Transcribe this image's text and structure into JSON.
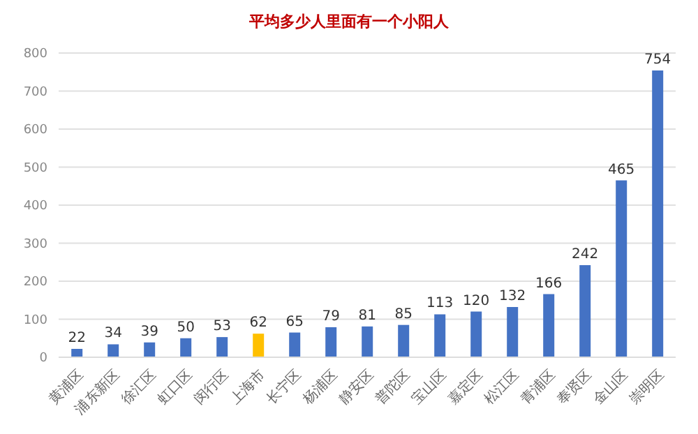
{
  "chart_data": {
    "type": "bar",
    "title": "平均多少人里面有一个小阳人",
    "categories": [
      "黄浦区",
      "浦东新区",
      "徐汇区",
      "虹口区",
      "闵行区",
      "上海市",
      "长宁区",
      "杨浦区",
      "静安区",
      "普陀区",
      "宝山区",
      "嘉定区",
      "松江区",
      "青浦区",
      "奉贤区",
      "金山区",
      "崇明区"
    ],
    "values": [
      22,
      34,
      39,
      50,
      53,
      62,
      65,
      79,
      81,
      85,
      113,
      120,
      132,
      166,
      242,
      465,
      754
    ],
    "colors": [
      "#4472c4",
      "#4472c4",
      "#4472c4",
      "#4472c4",
      "#4472c4",
      "#ffc000",
      "#4472c4",
      "#4472c4",
      "#4472c4",
      "#4472c4",
      "#4472c4",
      "#4472c4",
      "#4472c4",
      "#4472c4",
      "#4472c4",
      "#4472c4",
      "#4472c4"
    ],
    "ylim": [
      0,
      800
    ],
    "yticks": [
      0,
      100,
      200,
      300,
      400,
      500,
      600,
      700,
      800
    ],
    "grid": "y",
    "data_labels": true
  }
}
